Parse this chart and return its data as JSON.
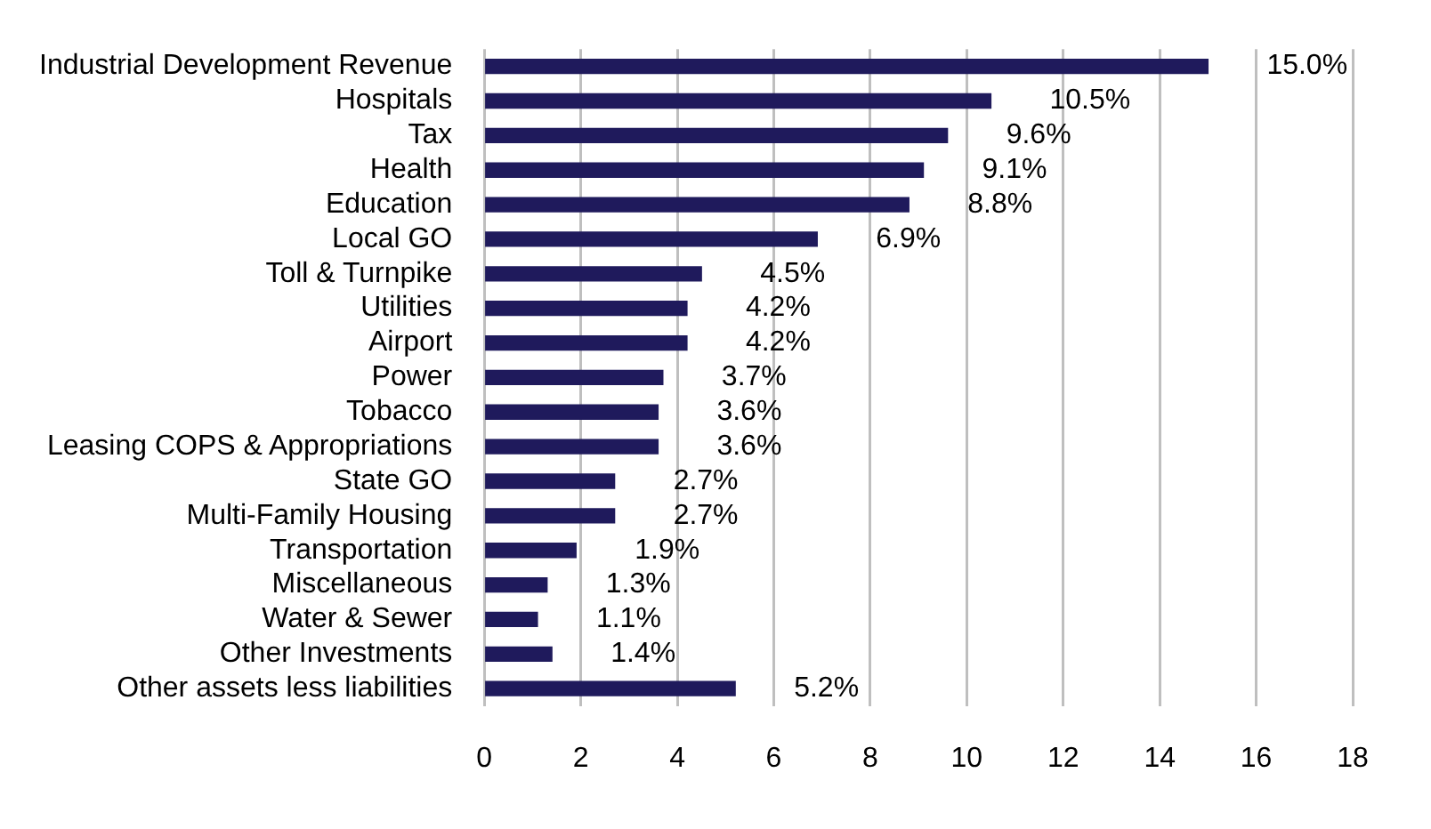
{
  "chart_data": {
    "type": "bar",
    "orientation": "horizontal",
    "categories": [
      "Industrial Development Revenue",
      "Hospitals",
      "Tax",
      "Health",
      "Education",
      "Local GO",
      "Toll & Turnpike",
      "Utilities",
      "Airport",
      "Power",
      "Tobacco",
      "Leasing COPS & Appropriations",
      "State GO",
      "Multi-Family Housing",
      "Transportation",
      "Miscellaneous",
      "Water & Sewer",
      "Other Investments",
      "Other assets less liabilities"
    ],
    "values": [
      15.0,
      10.5,
      9.6,
      9.1,
      8.8,
      6.9,
      4.5,
      4.2,
      4.2,
      3.7,
      3.6,
      3.6,
      2.7,
      2.7,
      1.9,
      1.3,
      1.1,
      1.4,
      5.2
    ],
    "value_labels": [
      "15.0%",
      "10.5%",
      "9.6%",
      "9.1%",
      "8.8%",
      "6.9%",
      "4.5%",
      "4.2%",
      "4.2%",
      "3.7%",
      "3.6%",
      "3.6%",
      "2.7%",
      "2.7%",
      "1.9%",
      "1.3%",
      "1.1%",
      "1.4%",
      "5.2%"
    ],
    "color": "#1f1a5c",
    "xlim": [
      0,
      18
    ],
    "xticks": [
      0,
      2,
      4,
      6,
      8,
      10,
      12,
      14,
      16,
      18
    ],
    "grid": "x",
    "legend": false
  }
}
